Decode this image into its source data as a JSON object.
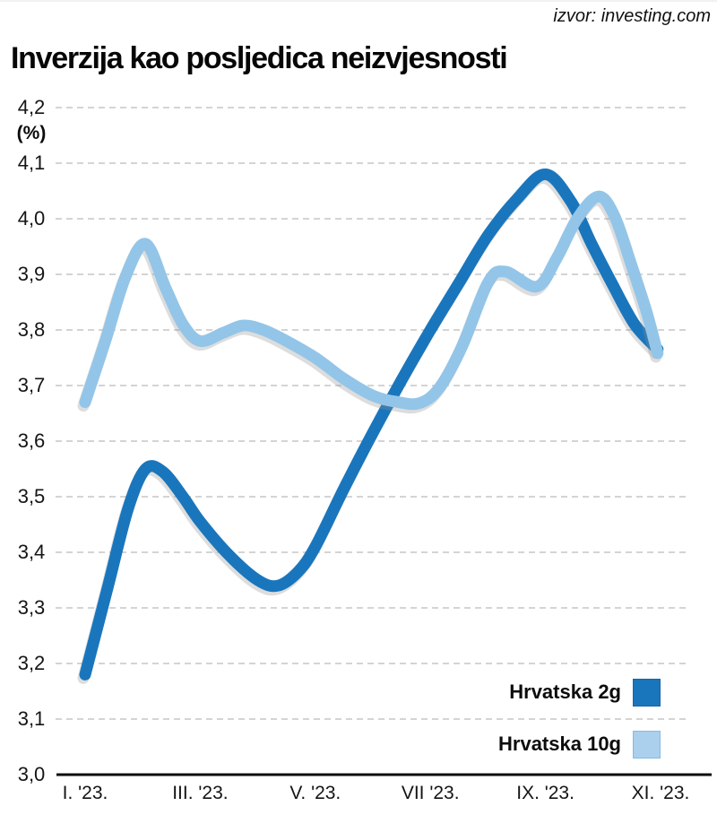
{
  "header": {
    "source": "izvor: investing.com",
    "title": "Inverzija kao posljedica neizvjesnosti"
  },
  "chart_data": {
    "type": "line",
    "title": "Inverzija kao posljedica neizvjesnosti",
    "source": "izvor: investing.com",
    "ylabel": "(%)",
    "ylim": [
      3.0,
      4.2
    ],
    "grid": "dashed horizontal lines at every 0.1",
    "x_unit": "month of 2023 (Roman numerals)",
    "legend_position": "bottom-right inside plot",
    "y_ticks": [
      {
        "value": 4.2,
        "label": "4,2"
      },
      {
        "value": 4.1,
        "label": "4,1"
      },
      {
        "value": 4.0,
        "label": "4,0"
      },
      {
        "value": 3.9,
        "label": "3,9"
      },
      {
        "value": 3.8,
        "label": "3,8"
      },
      {
        "value": 3.7,
        "label": "3,7"
      },
      {
        "value": 3.6,
        "label": "3,6"
      },
      {
        "value": 3.5,
        "label": "3,5"
      },
      {
        "value": 3.4,
        "label": "3,4"
      },
      {
        "value": 3.3,
        "label": "3,3"
      },
      {
        "value": 3.2,
        "label": "3,2"
      },
      {
        "value": 3.1,
        "label": "3,1"
      },
      {
        "value": 3.0,
        "label": "3,0"
      }
    ],
    "x_ticks": [
      {
        "month": 1,
        "label": "I. '23."
      },
      {
        "month": 3,
        "label": "III. '23."
      },
      {
        "month": 5,
        "label": "V. '23."
      },
      {
        "month": 7,
        "label": "VII '23."
      },
      {
        "month": 9,
        "label": "IX. '23."
      },
      {
        "month": 11,
        "label": "XI. '23."
      }
    ],
    "series": [
      {
        "name": "Hrvatska 2g",
        "color": "#1a76bc",
        "points": [
          [
            1,
            3.18
          ],
          [
            1.4,
            3.34
          ],
          [
            1.75,
            3.48
          ],
          [
            2.05,
            3.55
          ],
          [
            2.35,
            3.545
          ],
          [
            2.7,
            3.5
          ],
          [
            3,
            3.455
          ],
          [
            3.5,
            3.395
          ],
          [
            4,
            3.35
          ],
          [
            4.35,
            3.34
          ],
          [
            4.7,
            3.365
          ],
          [
            5,
            3.41
          ],
          [
            5.5,
            3.515
          ],
          [
            6,
            3.615
          ],
          [
            6.5,
            3.71
          ],
          [
            7,
            3.8
          ],
          [
            7.5,
            3.885
          ],
          [
            8,
            3.97
          ],
          [
            8.5,
            4.035
          ],
          [
            9,
            4.08
          ],
          [
            9.45,
            4.03
          ],
          [
            9.8,
            3.955
          ],
          [
            10.15,
            3.885
          ],
          [
            10.55,
            3.81
          ],
          [
            10.95,
            3.765
          ]
        ]
      },
      {
        "name": "Hrvatska 10g",
        "color": "#93c5e8",
        "points": [
          [
            1,
            3.67
          ],
          [
            1.35,
            3.78
          ],
          [
            1.7,
            3.895
          ],
          [
            2.05,
            3.955
          ],
          [
            2.4,
            3.875
          ],
          [
            2.7,
            3.81
          ],
          [
            3,
            3.78
          ],
          [
            3.4,
            3.795
          ],
          [
            3.75,
            3.808
          ],
          [
            4.1,
            3.8
          ],
          [
            4.5,
            3.78
          ],
          [
            5,
            3.75
          ],
          [
            5.5,
            3.712
          ],
          [
            6,
            3.682
          ],
          [
            6.4,
            3.671
          ],
          [
            6.8,
            3.668
          ],
          [
            7.15,
            3.695
          ],
          [
            7.55,
            3.77
          ],
          [
            8,
            3.885
          ],
          [
            8.3,
            3.905
          ],
          [
            8.85,
            3.878
          ],
          [
            9.2,
            3.93
          ],
          [
            9.55,
            4.0
          ],
          [
            9.92,
            4.04
          ],
          [
            10.2,
            4.005
          ],
          [
            10.5,
            3.915
          ],
          [
            10.75,
            3.835
          ],
          [
            10.95,
            3.758
          ]
        ]
      }
    ],
    "legend": [
      {
        "label": "Hrvatska 2g",
        "color": "#1a76bc",
        "border": "#1665a5"
      },
      {
        "label": "Hrvatska 10g",
        "color": "#aad0ed",
        "border": "#8abade"
      }
    ]
  }
}
